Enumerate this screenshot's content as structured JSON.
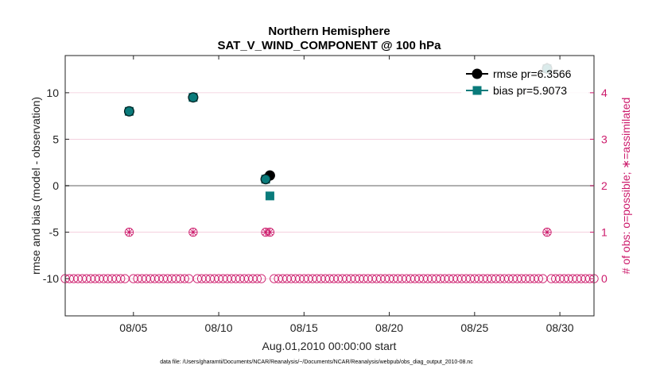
{
  "chart_data": {
    "type": "scatter",
    "title": "Northern Hemisphere",
    "subtitle": "SAT_V_WIND_COMPONENT @ 100 hPa",
    "xlabel": "Aug.01,2010 00:00:00 start",
    "ylabel": "rmse and bias (model - observation)",
    "y2label": "# of obs: o=possible; ∗=assimilated",
    "footnote": "data file: /Users/gharamti/Documents/NCAR/Reanalysis/~/Documents/NCAR/Reanalysis/webpub/obs_diag_output_2010-08.nc",
    "xlim": [
      1,
      32
    ],
    "ylim": [
      -14,
      14
    ],
    "y2lim": [
      -0.8,
      4.8
    ],
    "x_tick_values": [
      5,
      10,
      15,
      20,
      25,
      30
    ],
    "x_tick_labels": [
      "08/05",
      "08/10",
      "08/15",
      "08/20",
      "08/25",
      "08/30"
    ],
    "y_ticks": [
      -10,
      -5,
      0,
      5,
      10
    ],
    "y2_ticks": [
      0,
      1,
      2,
      3,
      4
    ],
    "grid": true,
    "zero_line": true,
    "legend_position": "top-right",
    "legend": [
      "rmse pr=6.3566",
      "bias pr=5.9073"
    ],
    "colors": {
      "rmse": "#000000",
      "bias": "#0a7b7b",
      "obs": "#cc1a6b",
      "zero_line": "#b0b0b0",
      "grid": "#f2c9d9"
    },
    "series": [
      {
        "name": "rmse pr=6.3566",
        "marker": "circle",
        "x": [
          4.75,
          8.5,
          12.75,
          13.0,
          29.25
        ],
        "y": [
          8.0,
          9.5,
          0.7,
          1.1,
          12.6
        ]
      },
      {
        "name": "bias pr=5.9073",
        "marker": "square",
        "x": [
          4.75,
          8.5,
          12.75,
          13.0,
          29.25
        ],
        "y": [
          8.0,
          9.5,
          0.7,
          -1.1,
          12.6
        ]
      }
    ],
    "obs_possible_zero_x_range": [
      1.0,
      32.0
    ],
    "obs_possible_zero_step": 0.25,
    "obs_possible_one_x": [
      4.75,
      8.5,
      12.75,
      13.0,
      29.25
    ],
    "obs_assimilated_one_x": [
      4.75,
      8.5,
      12.75,
      13.0,
      29.25
    ]
  }
}
